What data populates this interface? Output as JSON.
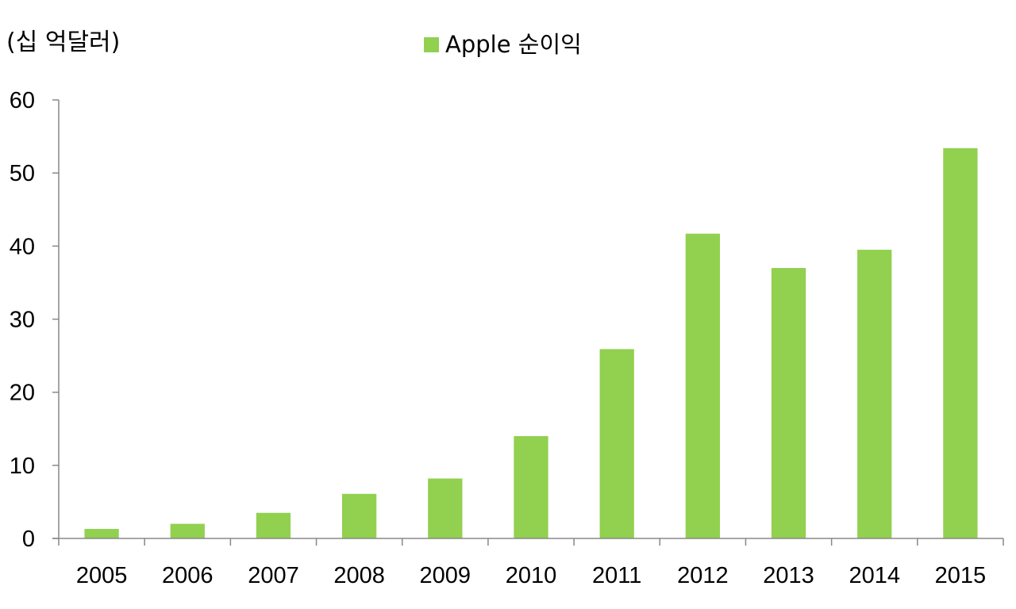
{
  "chart_data": {
    "type": "bar",
    "title": "",
    "unit_label": "(십 억달러)",
    "xlabel": "",
    "ylabel": "",
    "categories": [
      "2005",
      "2006",
      "2007",
      "2008",
      "2009",
      "2010",
      "2011",
      "2012",
      "2013",
      "2014",
      "2015"
    ],
    "series": [
      {
        "name": "Apple 순이익",
        "color": "#92d050",
        "values": [
          1.3,
          2.0,
          3.5,
          6.1,
          8.2,
          14.0,
          25.9,
          41.7,
          37.0,
          39.5,
          53.4
        ]
      }
    ],
    "ylim": [
      0,
      60
    ],
    "yticks": [
      0,
      10,
      20,
      30,
      40,
      50,
      60
    ],
    "grid": false,
    "legend_position": "top-center"
  }
}
